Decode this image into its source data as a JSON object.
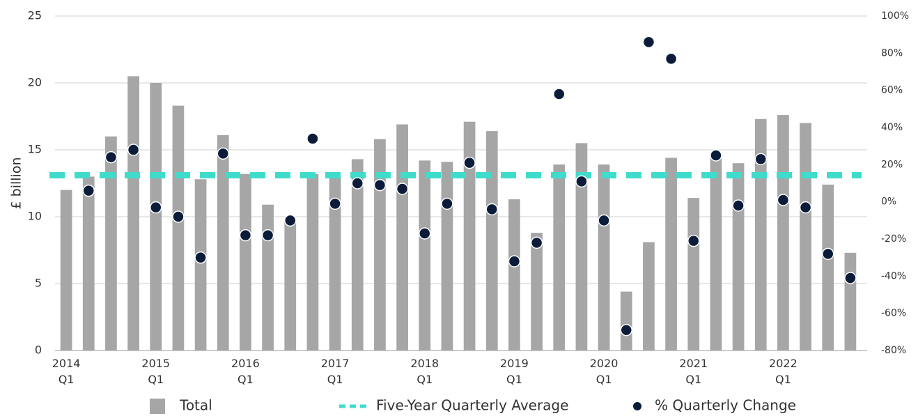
{
  "chart_data": {
    "type": "bar",
    "y_label": "£ billion",
    "categories": [
      "2014\nQ1",
      null,
      null,
      null,
      "2015\nQ1",
      null,
      null,
      null,
      "2016\nQ1",
      null,
      null,
      null,
      "2017\nQ1",
      null,
      null,
      null,
      "2018\nQ1",
      null,
      null,
      null,
      "2019\nQ1",
      null,
      null,
      null,
      "2020\nQ1",
      null,
      null,
      null,
      "2021\nQ1",
      null,
      null,
      null,
      "2022\nQ1",
      null,
      null,
      null
    ],
    "series": [
      {
        "name": "Total",
        "type": "bar",
        "color": "#a6a6a6",
        "values": [
          12.0,
          13.0,
          16.0,
          20.5,
          20.0,
          18.3,
          12.8,
          16.1,
          13.2,
          10.9,
          9.7,
          13.2,
          12.9,
          14.3,
          15.8,
          16.9,
          14.2,
          14.1,
          17.1,
          16.4,
          11.3,
          8.8,
          13.9,
          15.5,
          13.9,
          4.4,
          8.1,
          14.4,
          11.4,
          14.5,
          14.0,
          17.3,
          17.6,
          17.0,
          12.4,
          7.3
        ]
      },
      {
        "name": "Five-Year Quarterly Average",
        "type": "line",
        "color": "#3fdccb",
        "values": [
          13.1,
          13.1,
          13.1,
          13.1,
          13.1,
          13.1,
          13.1,
          13.1,
          13.1,
          13.1,
          13.1,
          13.1,
          13.1,
          13.1,
          13.1,
          13.1,
          13.1,
          13.1,
          13.1,
          13.1,
          13.1,
          13.1,
          13.1,
          13.1,
          13.1,
          13.1,
          13.1,
          13.1,
          13.1,
          13.1,
          13.1,
          13.1,
          13.1,
          13.1,
          13.1,
          13.1
        ]
      },
      {
        "name": "% Quarterly Change",
        "type": "scatter",
        "axis": "y2",
        "color": "#0b1c3a",
        "values": [
          null,
          6,
          24,
          28,
          -3,
          -8,
          -30,
          26,
          -18,
          -18,
          -10,
          34,
          -1,
          10,
          9,
          7,
          -17,
          -1,
          21,
          -4,
          -32,
          -22,
          58,
          11,
          -10,
          -69,
          86,
          77,
          -21,
          25,
          -2,
          23,
          1,
          -3,
          -28,
          -41
        ]
      }
    ],
    "ylim": [
      0,
      25
    ],
    "yticks": [
      0,
      5,
      10,
      15,
      20,
      25
    ],
    "y2lim": [
      -80,
      100
    ],
    "y2ticks": [
      {
        "value": -80,
        "label": "-80%"
      },
      {
        "value": -60,
        "label": "-60%"
      },
      {
        "value": -40,
        "label": "-40%"
      },
      {
        "value": -20,
        "label": "-20%"
      },
      {
        "value": 0,
        "label": "0%"
      },
      {
        "value": 20,
        "label": "20%"
      },
      {
        "value": 40,
        "label": "40%"
      },
      {
        "value": 60,
        "label": "60%"
      },
      {
        "value": 80,
        "label": "80%"
      },
      {
        "value": 100,
        "label": "100%"
      }
    ],
    "grid": true,
    "legend": "bottom"
  }
}
